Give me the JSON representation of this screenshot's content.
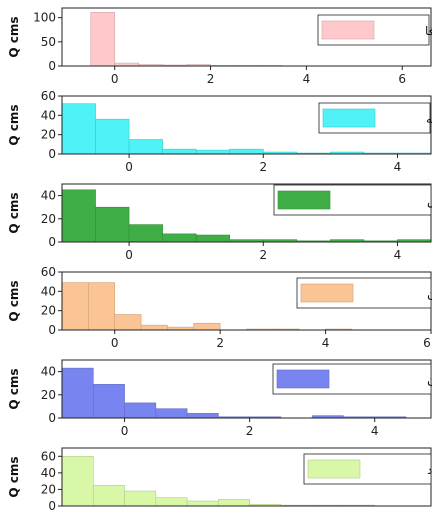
{
  "chart_data": [
    {
      "type": "bar",
      "legend": "جان آقا",
      "color": "#ffc9cc",
      "ylabel": "Q cms",
      "xlim": [
        -1.1,
        6.6
      ],
      "ylim": [
        0,
        120
      ],
      "xticks": [
        0,
        2,
        4,
        6
      ],
      "yticks": [
        0,
        50,
        100
      ],
      "bin_edges": [
        -0.5,
        0.0,
        0.5,
        1.0,
        1.5,
        2.0,
        2.5,
        3.0,
        3.5,
        4.0,
        4.5,
        5.0,
        5.5,
        6.0,
        6.5
      ],
      "values": [
        111,
        6,
        3,
        2,
        3,
        1,
        1,
        1,
        0,
        0,
        0,
        0,
        0,
        0
      ]
    },
    {
      "type": "bar",
      "legend": "ســنته",
      "color": "#4ff3f7",
      "ylabel": "Q cms",
      "xlim": [
        -1.0,
        4.5
      ],
      "ylim": [
        0,
        60
      ],
      "xticks": [
        0,
        2,
        4
      ],
      "yticks": [
        0,
        20,
        40,
        60
      ],
      "bin_edges": [
        -1.0,
        -0.5,
        0.0,
        0.5,
        1.0,
        1.5,
        2.0,
        2.5,
        3.0,
        3.5,
        4.0,
        4.5
      ],
      "values": [
        52,
        36,
        15,
        5,
        4,
        5,
        2,
        1,
        2,
        1,
        1
      ]
    },
    {
      "type": "bar",
      "legend": "ســاریقمیش",
      "color": "#3fae46",
      "ylabel": "Q cms",
      "xlim": [
        -1.0,
        4.5
      ],
      "ylim": [
        0,
        50
      ],
      "xticks": [
        0,
        2,
        4
      ],
      "yticks": [
        0,
        20,
        40
      ],
      "bin_edges": [
        -1.0,
        -0.5,
        0.0,
        0.5,
        1.0,
        1.5,
        2.0,
        2.5,
        3.0,
        3.5,
        4.0,
        4.5
      ],
      "values": [
        45,
        30,
        15,
        7,
        6,
        2,
        2,
        1,
        2,
        1,
        2
      ]
    },
    {
      "type": "bar",
      "legend": "پـل آنیـان",
      "color": "#fbc494",
      "ylabel": "Q cms",
      "xlim": [
        -1.0,
        6.0
      ],
      "ylim": [
        0,
        60
      ],
      "xticks": [
        0,
        2,
        4,
        6
      ],
      "yticks": [
        0,
        20,
        40,
        60
      ],
      "bin_edges": [
        -1.0,
        -0.5,
        0.0,
        0.5,
        1.0,
        1.5,
        2.0,
        2.5,
        3.0,
        3.5,
        4.0,
        4.5,
        5.0
      ],
      "values": [
        49,
        49,
        16,
        5,
        3,
        7,
        0,
        1,
        1,
        0,
        1,
        0
      ]
    },
    {
      "type": "bar",
      "legend": "دره پنبـــه دان",
      "color": "#7884f0",
      "ylabel": "Q cms",
      "xlim": [
        -1.0,
        4.9
      ],
      "ylim": [
        0,
        50
      ],
      "xticks": [
        0,
        2,
        4
      ],
      "yticks": [
        0,
        20,
        40
      ],
      "bin_edges": [
        -1.0,
        -0.5,
        0.0,
        0.5,
        1.0,
        1.5,
        2.0,
        2.5,
        3.0,
        3.5,
        4.0,
        4.5
      ],
      "values": [
        43,
        29,
        13,
        8,
        4,
        1,
        1,
        0,
        2,
        1,
        1
      ]
    },
    {
      "type": "bar",
      "legend": "نظام آ باد",
      "color": "#d8f8a8",
      "ylabel": "Q cms",
      "xlim": [
        -1.0,
        4.9
      ],
      "ylim": [
        0,
        70
      ],
      "xticks": [],
      "yticks": [
        0,
        20,
        40,
        60
      ],
      "bin_edges": [
        -1.0,
        -0.5,
        0.0,
        0.5,
        1.0,
        1.5,
        2.0,
        2.5,
        3.0,
        3.5,
        4.0
      ],
      "values": [
        60,
        25,
        18,
        10,
        6,
        8,
        2,
        1,
        1,
        1
      ]
    }
  ]
}
